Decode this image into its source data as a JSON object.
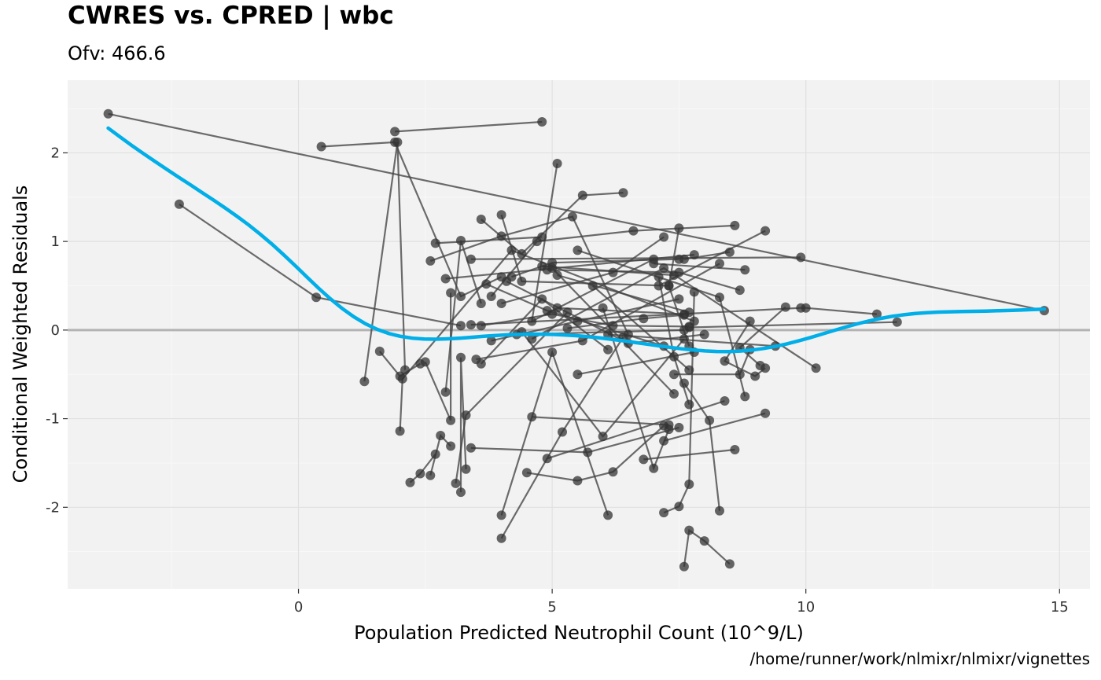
{
  "chart_data": {
    "type": "scatter",
    "title": "CWRES vs. CPRED | wbc",
    "subtitle": "Ofv: 466.6",
    "xlabel": "Population Predicted Neutrophil Count (10^9/L)",
    "ylabel": "Conditional Weighted Residuals",
    "caption": "/home/runner/work/nlmixr/nlmixr/vignettes",
    "xlim": [
      -4.55,
      15.6
    ],
    "ylim": [
      -2.92,
      2.82
    ],
    "xticks": [
      "0",
      "5",
      "10",
      "15"
    ],
    "yticks": [
      "-2",
      "-1",
      "0",
      "1",
      "2"
    ],
    "grid": true,
    "reference_line_y": 0,
    "colors": {
      "panel": "#f2f2f2",
      "grid": "#e0e0e0",
      "points": "#333333",
      "lines": "#444444",
      "smooth": "#00aee8",
      "refline": "#b3b3b3"
    },
    "series": [
      {
        "points": [
          [
            -3.75,
            2.44
          ],
          [
            14.7,
            0.22
          ]
        ]
      },
      {
        "points": [
          [
            -2.35,
            1.42
          ],
          [
            0.35,
            0.37
          ],
          [
            3.2,
            0.05
          ]
        ]
      },
      {
        "points": [
          [
            0.45,
            2.07
          ],
          [
            1.9,
            2.12
          ],
          [
            3.2,
            0.38
          ],
          [
            4.0,
            0.6
          ]
        ]
      },
      {
        "points": [
          [
            1.9,
            2.24
          ],
          [
            4.8,
            2.35
          ]
        ]
      },
      {
        "points": [
          [
            1.3,
            -0.58
          ],
          [
            1.95,
            2.12
          ],
          [
            2.1,
            -0.45
          ]
        ]
      },
      {
        "points": [
          [
            1.6,
            -0.24
          ],
          [
            2.0,
            -0.52
          ],
          [
            2.4,
            -0.38
          ]
        ]
      },
      {
        "points": [
          [
            2.0,
            -1.14
          ],
          [
            2.05,
            -0.55
          ],
          [
            4.2,
            0.9
          ],
          [
            7.8,
            0.1
          ]
        ]
      },
      {
        "points": [
          [
            2.2,
            -1.72
          ],
          [
            2.4,
            -1.62
          ],
          [
            2.7,
            -1.4
          ]
        ]
      },
      {
        "points": [
          [
            2.5,
            -0.36
          ],
          [
            3.0,
            -1.02
          ],
          [
            3.0,
            0.42
          ]
        ]
      },
      {
        "points": [
          [
            2.6,
            -1.64
          ],
          [
            2.8,
            -1.19
          ],
          [
            3.0,
            -1.31
          ]
        ]
      },
      {
        "points": [
          [
            2.9,
            -0.7
          ],
          [
            3.2,
            1.01
          ],
          [
            3.6,
            0.3
          ]
        ]
      },
      {
        "points": [
          [
            3.1,
            -1.73
          ],
          [
            3.3,
            -0.96
          ],
          [
            5.3,
            0.2
          ]
        ]
      },
      {
        "points": [
          [
            3.2,
            -1.83
          ],
          [
            3.2,
            -0.31
          ],
          [
            3.3,
            -1.57
          ]
        ]
      },
      {
        "points": [
          [
            3.4,
            -1.33
          ],
          [
            5.7,
            -1.38
          ],
          [
            7.5,
            -1.1
          ]
        ]
      },
      {
        "points": [
          [
            4.0,
            -2.09
          ],
          [
            5.0,
            -0.25
          ],
          [
            6.1,
            -2.09
          ]
        ]
      },
      {
        "points": [
          [
            4.0,
            -2.35
          ],
          [
            5.2,
            -1.15
          ],
          [
            6.4,
            -0.08
          ]
        ]
      },
      {
        "points": [
          [
            4.5,
            -1.61
          ],
          [
            5.5,
            -1.7
          ],
          [
            6.2,
            -1.6
          ],
          [
            7.2,
            -1.08
          ]
        ]
      },
      {
        "points": [
          [
            4.6,
            -0.98
          ],
          [
            7.3,
            -1.07
          ]
        ]
      },
      {
        "points": [
          [
            4.9,
            -1.45
          ],
          [
            8.4,
            -0.8
          ]
        ]
      },
      {
        "points": [
          [
            6.8,
            -1.46
          ],
          [
            8.6,
            -1.35
          ]
        ]
      },
      {
        "points": [
          [
            7.2,
            -2.06
          ],
          [
            7.5,
            -1.99
          ],
          [
            7.7,
            -1.74
          ],
          [
            7.8,
            0.43
          ]
        ]
      },
      {
        "points": [
          [
            7.6,
            -2.67
          ],
          [
            7.7,
            -2.26
          ],
          [
            8.0,
            -2.38
          ],
          [
            8.5,
            -2.64
          ]
        ]
      },
      {
        "points": [
          [
            7.3,
            -1.12
          ],
          [
            7.0,
            -1.56
          ],
          [
            6.0,
            0.25
          ]
        ]
      },
      {
        "points": [
          [
            8.3,
            -2.04
          ],
          [
            8.1,
            -1.02
          ],
          [
            7.6,
            -0.6
          ]
        ]
      },
      {
        "points": [
          [
            8.8,
            -0.75
          ],
          [
            8.3,
            0.37
          ],
          [
            5.5,
            0.9
          ]
        ]
      },
      {
        "points": [
          [
            4.2,
            0.6
          ],
          [
            5.0,
            0.76
          ],
          [
            7.5,
            0.8
          ]
        ]
      },
      {
        "points": [
          [
            2.6,
            0.78
          ],
          [
            4.0,
            1.06
          ],
          [
            5.4,
            1.28
          ],
          [
            6.5,
            -0.05
          ]
        ]
      },
      {
        "points": [
          [
            2.7,
            0.98
          ],
          [
            4.8,
            1.05
          ]
        ]
      },
      {
        "points": [
          [
            3.6,
            1.25
          ],
          [
            4.4,
            0.86
          ],
          [
            5.6,
            1.52
          ],
          [
            6.4,
            1.55
          ]
        ]
      },
      {
        "points": [
          [
            4.0,
            1.3
          ],
          [
            4.4,
            0.55
          ],
          [
            7.3,
            0.5
          ]
        ]
      },
      {
        "points": [
          [
            5.1,
            1.88
          ],
          [
            4.6,
            0.1
          ],
          [
            7.0,
            0.8
          ]
        ]
      },
      {
        "points": [
          [
            3.8,
            0.38
          ],
          [
            4.7,
            1.0
          ],
          [
            6.6,
            1.12
          ],
          [
            8.6,
            1.18
          ]
        ]
      },
      {
        "points": [
          [
            2.9,
            0.58
          ],
          [
            7.8,
            0.85
          ]
        ]
      },
      {
        "points": [
          [
            3.4,
            0.8
          ],
          [
            9.9,
            0.82
          ]
        ]
      },
      {
        "points": [
          [
            3.4,
            0.06
          ],
          [
            9.9,
            0.25
          ],
          [
            10.0,
            0.25
          ],
          [
            11.4,
            0.18
          ]
        ]
      },
      {
        "points": [
          [
            7.7,
            0.03
          ],
          [
            11.8,
            0.09
          ]
        ]
      },
      {
        "points": [
          [
            7.2,
            -1.25
          ],
          [
            9.2,
            -0.94
          ]
        ]
      },
      {
        "points": [
          [
            6.1,
            -0.05
          ],
          [
            9.4,
            -0.18
          ]
        ]
      },
      {
        "points": [
          [
            7.1,
            0.5
          ],
          [
            9.2,
            1.12
          ]
        ]
      },
      {
        "points": [
          [
            7.0,
            0.75
          ],
          [
            8.8,
            0.68
          ]
        ]
      },
      {
        "points": [
          [
            7.6,
            0.8
          ],
          [
            8.5,
            0.88
          ]
        ]
      },
      {
        "points": [
          [
            9.6,
            0.26
          ],
          [
            8.7,
            -0.2
          ],
          [
            9.1,
            -0.4
          ]
        ]
      },
      {
        "points": [
          [
            8.9,
            0.1
          ],
          [
            8.4,
            -0.35
          ],
          [
            9.0,
            -0.52
          ],
          [
            9.2,
            -0.43
          ]
        ]
      },
      {
        "points": [
          [
            3.6,
            -0.38
          ],
          [
            4.8,
            0.35
          ],
          [
            6.1,
            -0.22
          ]
        ]
      },
      {
        "points": [
          [
            4.6,
            -0.1
          ],
          [
            7.2,
            0.7
          ],
          [
            10.2,
            -0.43
          ]
        ]
      },
      {
        "points": [
          [
            4.8,
            0.72
          ],
          [
            7.4,
            0.62
          ]
        ]
      },
      {
        "points": [
          [
            5.0,
            0.7
          ],
          [
            7.4,
            -0.72
          ]
        ]
      },
      {
        "points": [
          [
            4.0,
            0.3
          ],
          [
            6.2,
            0.65
          ],
          [
            7.2,
            1.05
          ]
        ]
      },
      {
        "points": [
          [
            5.1,
            0.25
          ],
          [
            7.6,
            0.18
          ]
        ]
      },
      {
        "points": [
          [
            3.5,
            -0.33
          ],
          [
            5.6,
            -0.12
          ],
          [
            8.3,
            0.75
          ]
        ]
      },
      {
        "points": [
          [
            3.8,
            -0.12
          ],
          [
            5.5,
            0.1
          ],
          [
            7.5,
            0.35
          ]
        ]
      },
      {
        "points": [
          [
            5.5,
            -0.5
          ],
          [
            7.8,
            -0.25
          ]
        ]
      },
      {
        "points": [
          [
            5.1,
            0.62
          ],
          [
            7.7,
            0.2
          ]
        ]
      },
      {
        "points": [
          [
            4.1,
            0.55
          ],
          [
            6.5,
            -0.15
          ],
          [
            8.0,
            -0.05
          ]
        ]
      },
      {
        "points": [
          [
            3.7,
            0.52
          ],
          [
            4.9,
            0.22
          ],
          [
            7.2,
            -0.18
          ]
        ]
      },
      {
        "points": [
          [
            5.8,
            0.5
          ],
          [
            7.7,
            -0.45
          ]
        ]
      },
      {
        "points": [
          [
            4.3,
            -0.05
          ],
          [
            7.6,
            0.0
          ]
        ]
      },
      {
        "points": [
          [
            4.9,
            0.68
          ],
          [
            7.5,
            0.65
          ],
          [
            8.7,
            0.45
          ]
        ]
      },
      {
        "points": [
          [
            4.4,
            -0.02
          ],
          [
            6.0,
            -1.2
          ],
          [
            7.6,
            -0.1
          ]
        ]
      },
      {
        "points": [
          [
            3.6,
            0.05
          ],
          [
            5.0,
            0.18
          ],
          [
            6.2,
            0.05
          ],
          [
            7.7,
            0.04
          ]
        ]
      },
      {
        "points": [
          [
            7.4,
            -0.5
          ],
          [
            8.7,
            -0.5
          ],
          [
            8.9,
            -0.22
          ]
        ]
      },
      {
        "points": [
          [
            7.7,
            -0.84
          ],
          [
            7.4,
            -0.3
          ],
          [
            7.1,
            0.6
          ]
        ]
      },
      {
        "points": [
          [
            7.5,
            1.15
          ],
          [
            7.3,
            0.5
          ],
          [
            7.7,
            -0.18
          ]
        ]
      },
      {
        "points": [
          [
            5.3,
            0.02
          ],
          [
            6.8,
            0.13
          ],
          [
            7.6,
            0.17
          ]
        ]
      }
    ]
  }
}
